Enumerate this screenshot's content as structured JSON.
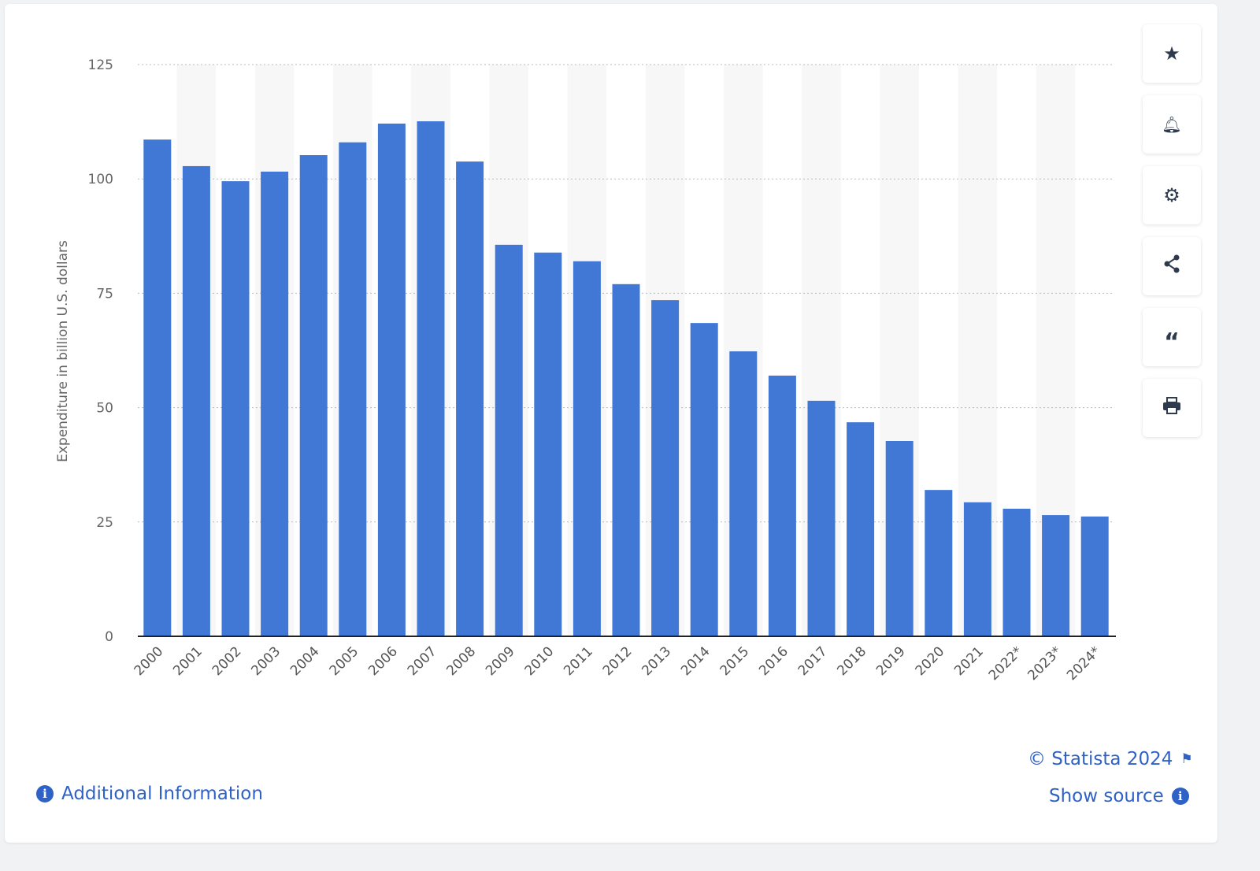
{
  "chart_data": {
    "type": "bar",
    "categories": [
      "2000",
      "2001",
      "2002",
      "2003",
      "2004",
      "2005",
      "2006",
      "2007",
      "2008",
      "2009",
      "2010",
      "2011",
      "2012",
      "2013",
      "2014",
      "2015",
      "2016",
      "2017",
      "2018",
      "2019",
      "2020",
      "2021",
      "2022*",
      "2023*",
      "2024*"
    ],
    "values": [
      108.6,
      102.8,
      99.5,
      101.6,
      105.2,
      108.0,
      112.1,
      112.6,
      103.8,
      85.6,
      83.9,
      82.0,
      77.0,
      73.5,
      68.5,
      62.3,
      57.0,
      51.5,
      46.8,
      42.7,
      32.0,
      29.3,
      27.9,
      26.5,
      26.2
    ],
    "ylabel": "Expenditure in billion U.S. dollars",
    "ylim": [
      0,
      125
    ],
    "yticks": [
      0,
      25,
      50,
      75,
      100,
      125
    ],
    "grid": true,
    "bar_color": "#4178d6"
  },
  "footer": {
    "copyright": "© Statista 2024",
    "show_source": "Show source",
    "additional_info": "Additional Information"
  },
  "sidebar": [
    "star-icon",
    "bell-icon",
    "gear-icon",
    "share-icon",
    "quote-icon",
    "print-icon"
  ]
}
